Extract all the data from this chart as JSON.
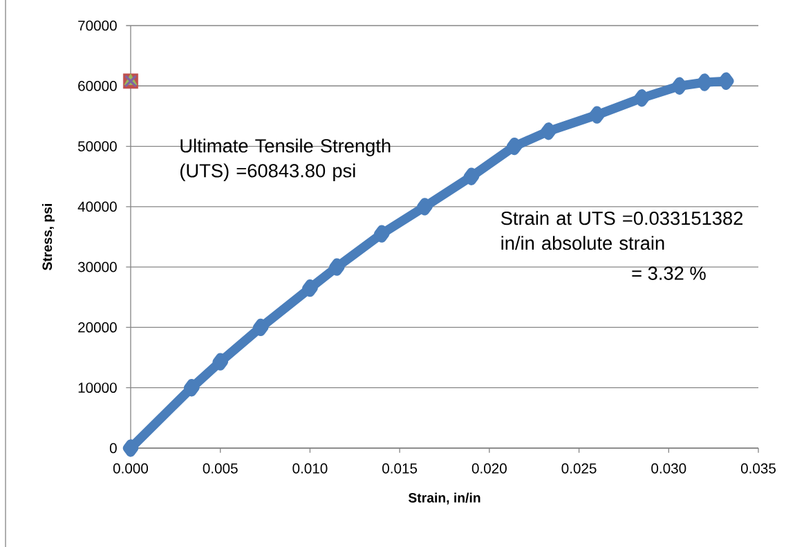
{
  "chart_data": {
    "type": "line",
    "xlabel": "Strain, in/in",
    "ylabel": "Stress, psi",
    "xlim": [
      0,
      0.035
    ],
    "ylim": [
      0,
      70000
    ],
    "xticks": [
      {
        "value": 0,
        "label": "0.000"
      },
      {
        "value": 0.005,
        "label": "0.005"
      },
      {
        "value": 0.01,
        "label": "0.010"
      },
      {
        "value": 0.015,
        "label": "0.015"
      },
      {
        "value": 0.02,
        "label": "0.020"
      },
      {
        "value": 0.025,
        "label": "0.025"
      },
      {
        "value": 0.03,
        "label": "0.030"
      },
      {
        "value": 0.035,
        "label": "0.035"
      }
    ],
    "yticks": [
      0,
      10000,
      20000,
      30000,
      40000,
      50000,
      60000,
      70000
    ],
    "grid": "y",
    "series": [
      {
        "marker": "diamond",
        "color": "#4a7ebb",
        "x": [
          0,
          0.0034,
          0.005,
          0.00725,
          0.01,
          0.0115,
          0.014,
          0.0164,
          0.019,
          0.0214,
          0.0233,
          0.026,
          0.0285,
          0.0306,
          0.032,
          0.0332
        ],
        "values": [
          0,
          10000,
          14300,
          20000,
          26500,
          30000,
          35500,
          40000,
          45000,
          50000,
          52500,
          55200,
          58000,
          60000,
          60600,
          60800
        ]
      },
      {
        "type": "scatter",
        "marker": "square",
        "color": "#c0504d",
        "x": [
          0
        ],
        "values": [
          60800
        ]
      },
      {
        "type": "scatter",
        "marker": "triangle",
        "color": "#9bbb59",
        "x": [
          0
        ],
        "values": [
          60800
        ]
      },
      {
        "type": "scatter",
        "marker": "cross",
        "color": "#8064a2",
        "x": [
          0
        ],
        "values": [
          60800
        ]
      }
    ],
    "annotations": [
      "Ultimate Tensile Strength (UTS) =60843.80 psi",
      "Strain at UTS =0.033151382 in/in absolute strain",
      "= 3.32 %"
    ]
  }
}
